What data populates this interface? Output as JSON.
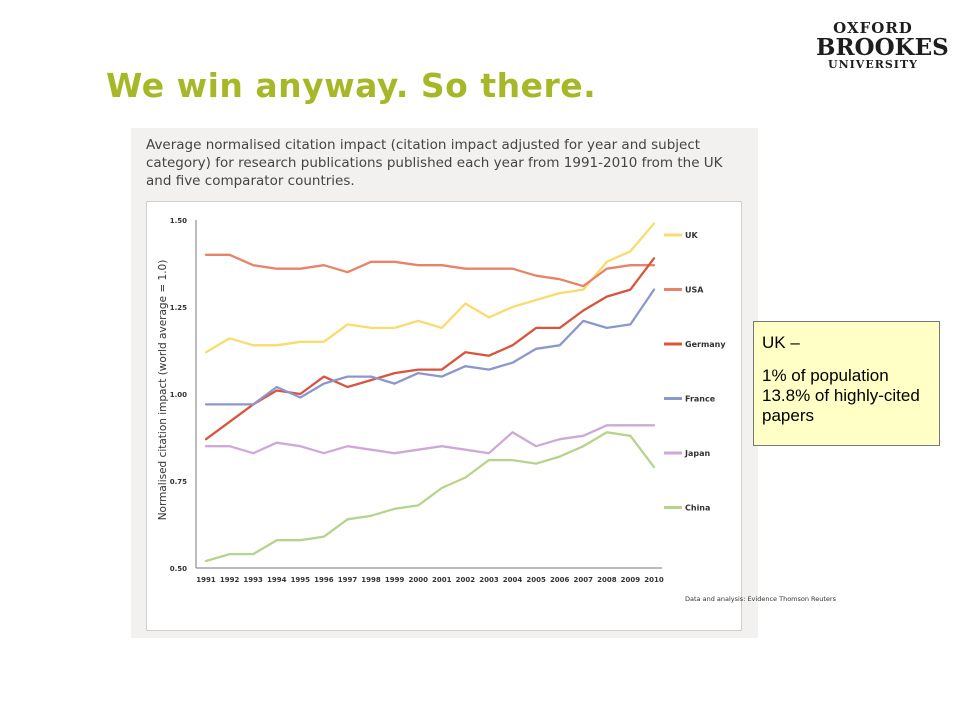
{
  "slide": {
    "title": "We win anyway. So there."
  },
  "logo": {
    "line1": "OXFORD",
    "line2": "BROOKES",
    "line3": "UNIVERSITY"
  },
  "callout": {
    "line1": "UK –",
    "line2": "1% of population 13.8% of highly-cited papers"
  },
  "chart_data": {
    "type": "line",
    "title": "Average normalised citation impact (citation impact adjusted for year and subject category) for research publications published each year from 1991-2010 from the UK and five comparator countries.",
    "ylabel": "Normalised citation impact (world average = 1.0)",
    "xlabel": "",
    "ylim": [
      0.5,
      1.5
    ],
    "yticks": [
      "1.50",
      "1.25",
      "1.00",
      "0.75",
      "0.50"
    ],
    "yticks_values": [
      1.5,
      1.25,
      1.0,
      0.75,
      0.5
    ],
    "x": [
      "1991",
      "1992",
      "1993",
      "1994",
      "1995",
      "1996",
      "1997",
      "1998",
      "1999",
      "2000",
      "2001",
      "2002",
      "2003",
      "2004",
      "2005",
      "2006",
      "2007",
      "2008",
      "2009",
      "2010"
    ],
    "legend_position": "right",
    "grid": false,
    "source": "Data and analysis: Evidence Thomson Reuters",
    "series": [
      {
        "name": "UK",
        "color": "#f8dc6e",
        "values": [
          1.12,
          1.16,
          1.14,
          1.14,
          1.15,
          1.15,
          1.2,
          1.19,
          1.19,
          1.21,
          1.19,
          1.26,
          1.22,
          1.25,
          1.27,
          1.29,
          1.3,
          1.38,
          1.41,
          1.49
        ]
      },
      {
        "name": "USA",
        "color": "#e8836a",
        "values": [
          1.4,
          1.4,
          1.37,
          1.36,
          1.36,
          1.37,
          1.35,
          1.38,
          1.38,
          1.37,
          1.37,
          1.36,
          1.36,
          1.36,
          1.34,
          1.33,
          1.31,
          1.36,
          1.37,
          1.37
        ]
      },
      {
        "name": "Germany",
        "color": "#d9543f",
        "values": [
          0.87,
          0.92,
          0.97,
          1.01,
          1.0,
          1.05,
          1.02,
          1.04,
          1.06,
          1.07,
          1.07,
          1.12,
          1.11,
          1.14,
          1.19,
          1.19,
          1.24,
          1.28,
          1.3,
          1.39
        ]
      },
      {
        "name": "France",
        "color": "#8c97cc",
        "values": [
          0.97,
          0.97,
          0.97,
          1.02,
          0.99,
          1.03,
          1.05,
          1.05,
          1.03,
          1.06,
          1.05,
          1.08,
          1.07,
          1.09,
          1.13,
          1.14,
          1.21,
          1.19,
          1.2,
          1.3
        ]
      },
      {
        "name": "Japan",
        "color": "#cfa8d8",
        "values": [
          0.85,
          0.85,
          0.83,
          0.86,
          0.85,
          0.83,
          0.85,
          0.84,
          0.83,
          0.84,
          0.85,
          0.84,
          0.83,
          0.89,
          0.85,
          0.87,
          0.88,
          0.91,
          0.91,
          0.91
        ]
      },
      {
        "name": "China",
        "color": "#b8d38e",
        "values": [
          0.52,
          0.54,
          0.54,
          0.58,
          0.58,
          0.59,
          0.64,
          0.65,
          0.67,
          0.68,
          0.73,
          0.76,
          0.81,
          0.81,
          0.8,
          0.82,
          0.85,
          0.89,
          0.88,
          0.79
        ]
      }
    ]
  }
}
